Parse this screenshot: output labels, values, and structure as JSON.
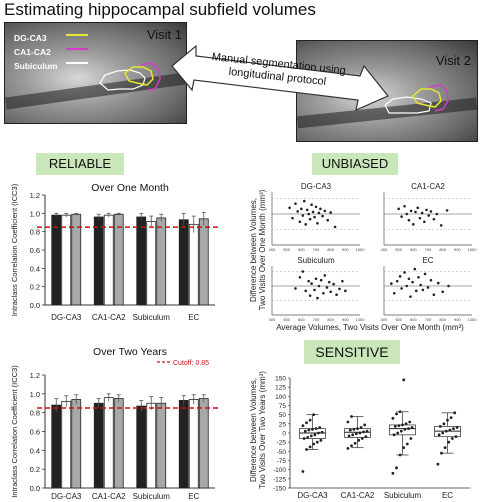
{
  "title": "Estimating hippocampal subfield volumes",
  "visit1": {
    "label": "Visit 1"
  },
  "visit2": {
    "label": "Visit 2"
  },
  "legend": [
    {
      "label": "DG-CA3",
      "color": "#e8e633"
    },
    {
      "label": "CA1-CA2",
      "color": "#d43cc8"
    },
    {
      "label": "Subiculum",
      "color": "#ffffff"
    }
  ],
  "arrow_text": {
    "line1": "Manual segmentation using",
    "line2": "longitudinal protocol"
  },
  "tags": {
    "reliable": "RELIABLE",
    "unbiased": "UNBIASED",
    "sensitive": "SENSITIVE"
  },
  "chart_data": [
    {
      "type": "bar",
      "title": "Over One Month",
      "ylabel": "Intraclass Correlation Coefficient (ICC3)",
      "ylim": [
        0,
        1.2
      ],
      "yticks": [
        "0.0",
        "0.2",
        "0.4",
        "0.6",
        "0.8",
        "1.0",
        "1.2"
      ],
      "categories": [
        "DG-CA3",
        "CA1-CA2",
        "Subiculum",
        "EC"
      ],
      "series_colors": [
        "#222222",
        "#ffffff",
        "#a8a8a8"
      ],
      "values": [
        [
          0.98,
          0.98,
          0.99
        ],
        [
          0.96,
          0.98,
          0.99
        ],
        [
          0.96,
          0.91,
          0.95
        ],
        [
          0.93,
          0.88,
          0.94
        ]
      ],
      "errors": [
        [
          0.02,
          0.02,
          0.01
        ],
        [
          0.03,
          0.02,
          0.01
        ],
        [
          0.04,
          0.06,
          0.04
        ],
        [
          0.07,
          0.09,
          0.07
        ]
      ],
      "cutoff": 0.85
    },
    {
      "type": "bar",
      "title": "Over Two Years",
      "ylabel": "Intraclass Correlation Coefficient (ICC3)",
      "ylim": [
        0,
        1.2
      ],
      "yticks": [
        "0.0",
        "0.2",
        "0.4",
        "0.6",
        "0.8",
        "1.0",
        "1.2"
      ],
      "categories": [
        "DG-CA3",
        "CA1-CA2",
        "Subiculum",
        "EC"
      ],
      "series_colors": [
        "#222222",
        "#ffffff",
        "#a8a8a8"
      ],
      "values": [
        [
          0.88,
          0.92,
          0.94
        ],
        [
          0.9,
          0.96,
          0.95
        ],
        [
          0.87,
          0.9,
          0.9
        ],
        [
          0.93,
          0.94,
          0.95
        ]
      ],
      "errors": [
        [
          0.07,
          0.06,
          0.05
        ],
        [
          0.05,
          0.04,
          0.04
        ],
        [
          0.06,
          0.07,
          0.06
        ],
        [
          0.05,
          0.05,
          0.04
        ]
      ],
      "cutoff": 0.85,
      "cutoff_label": "Cutoff: 0.85"
    },
    {
      "type": "scatter",
      "ylabel_line1": "Difference between Volumes,",
      "ylabel_line2": "Two Visits Over One Month (mm³)",
      "xlabel": "Average Volumes, Two Visits Over One Month (mm³)",
      "panels": [
        {
          "name": "DG-CA3",
          "xlim": [
            400,
            1000
          ],
          "xticks": [
            "400",
            "500",
            "600",
            "700",
            "800",
            "900",
            "1000"
          ],
          "points": [
            [
              520,
              12
            ],
            [
              540,
              -8
            ],
            [
              560,
              20
            ],
            [
              575,
              5
            ],
            [
              590,
              -15
            ],
            [
              600,
              10
            ],
            [
              610,
              -3
            ],
            [
              620,
              25
            ],
            [
              630,
              -20
            ],
            [
              640,
              8
            ],
            [
              650,
              0
            ],
            [
              660,
              -10
            ],
            [
              670,
              18
            ],
            [
              680,
              4
            ],
            [
              690,
              -6
            ],
            [
              700,
              14
            ],
            [
              710,
              -18
            ],
            [
              720,
              2
            ],
            [
              730,
              10
            ],
            [
              745,
              -4
            ],
            [
              760,
              6
            ],
            [
              780,
              -12
            ],
            [
              800,
              3
            ],
            [
              830,
              -25
            ]
          ]
        },
        {
          "name": "CA1-CA2",
          "xlim": [
            400,
            1000
          ],
          "xticks": [
            "400",
            "500",
            "600",
            "700",
            "800",
            "900",
            "1000"
          ],
          "points": [
            [
              500,
              10
            ],
            [
              520,
              -5
            ],
            [
              540,
              15
            ],
            [
              555,
              0
            ],
            [
              570,
              -12
            ],
            [
              585,
              6
            ],
            [
              600,
              -20
            ],
            [
              615,
              4
            ],
            [
              630,
              12
            ],
            [
              645,
              -8
            ],
            [
              660,
              2
            ],
            [
              675,
              -15
            ],
            [
              690,
              8
            ],
            [
              705,
              -3
            ],
            [
              720,
              5
            ],
            [
              740,
              -10
            ],
            [
              760,
              0
            ],
            [
              790,
              -22
            ],
            [
              830,
              7
            ]
          ]
        },
        {
          "name": "Subiculum",
          "xlim": [
            400,
            1000
          ],
          "xticks": [
            "400",
            "500",
            "600",
            "700",
            "800",
            "900",
            "1000"
          ],
          "points": [
            [
              560,
              -5
            ],
            [
              590,
              18
            ],
            [
              610,
              30
            ],
            [
              630,
              -10
            ],
            [
              650,
              10
            ],
            [
              660,
              -20
            ],
            [
              670,
              5
            ],
            [
              690,
              -8
            ],
            [
              700,
              15
            ],
            [
              710,
              -25
            ],
            [
              720,
              0
            ],
            [
              735,
              12
            ],
            [
              750,
              -15
            ],
            [
              760,
              22
            ],
            [
              775,
              -3
            ],
            [
              790,
              8
            ],
            [
              800,
              -12
            ],
            [
              820,
              4
            ],
            [
              840,
              -18
            ],
            [
              860,
              -6
            ],
            [
              880,
              10
            ],
            [
              900,
              -10
            ]
          ]
        },
        {
          "name": "EC",
          "xlim": [
            400,
            1000
          ],
          "xticks": [
            "400",
            "500",
            "600",
            "700",
            "800",
            "900",
            "1000"
          ],
          "points": [
            [
              450,
              5
            ],
            [
              470,
              -15
            ],
            [
              490,
              10
            ],
            [
              510,
              20
            ],
            [
              520,
              -5
            ],
            [
              540,
              28
            ],
            [
              555,
              0
            ],
            [
              570,
              15
            ],
            [
              580,
              -22
            ],
            [
              595,
              8
            ],
            [
              610,
              35
            ],
            [
              620,
              -10
            ],
            [
              635,
              18
            ],
            [
              650,
              2
            ],
            [
              665,
              -8
            ],
            [
              680,
              25
            ],
            [
              700,
              -3
            ],
            [
              720,
              12
            ],
            [
              740,
              -18
            ],
            [
              770,
              6
            ],
            [
              800,
              -12
            ],
            [
              840,
              0
            ]
          ]
        }
      ]
    },
    {
      "type": "box",
      "ylabel_line1": "Difference between Volumes,",
      "ylabel_line2": "Two Visits Over Two Years (mm³)",
      "ylim": [
        -150,
        150
      ],
      "yticks": [
        "-150",
        "-125",
        "-100",
        "-75",
        "-50",
        "-25",
        "0",
        "25",
        "50",
        "75",
        "100",
        "125",
        "150"
      ],
      "categories": [
        "DG-CA3",
        "CA1-CA2",
        "Subiculum",
        "EC"
      ],
      "boxes": [
        {
          "q1": -15,
          "median": 0,
          "q3": 12,
          "low": -45,
          "high": 50,
          "points": [
            -105,
            -45,
            -38,
            -30,
            -25,
            -20,
            -15,
            -12,
            -8,
            -5,
            0,
            2,
            5,
            8,
            10,
            12,
            15,
            20,
            28,
            35,
            50
          ]
        },
        {
          "q1": -12,
          "median": 2,
          "q3": 12,
          "low": -40,
          "high": 45,
          "points": [
            -42,
            -35,
            -28,
            -20,
            -15,
            -10,
            -8,
            -5,
            -2,
            0,
            3,
            5,
            8,
            10,
            12,
            15,
            22,
            30,
            45
          ]
        },
        {
          "q1": -5,
          "median": 12,
          "q3": 22,
          "low": -60,
          "high": 58,
          "points": [
            -110,
            -95,
            -60,
            -40,
            -30,
            -15,
            -5,
            0,
            5,
            10,
            12,
            15,
            18,
            20,
            22,
            25,
            30,
            40,
            52,
            58,
            145
          ]
        },
        {
          "q1": -10,
          "median": 5,
          "q3": 18,
          "low": -55,
          "high": 55,
          "points": [
            -85,
            -55,
            -40,
            -25,
            -15,
            -10,
            -5,
            0,
            5,
            8,
            12,
            15,
            18,
            25,
            35,
            42,
            55
          ]
        }
      ]
    }
  ]
}
